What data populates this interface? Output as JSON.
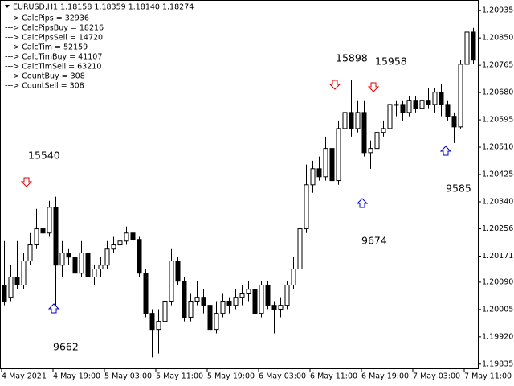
{
  "chart_data": {
    "type": "candlestick",
    "title": "EURUSD,H1  1.18158 1.18359 1.18140 1.18274",
    "info": [
      "---> CalcPips = 32936",
      "---> CalcPipsBuy = 18216",
      "---> CalcPipsSell = 14720",
      "---> CalcTim = 52159",
      "---> CalcTimBuy = 41107",
      "---> CalcTimSell = 63210",
      "---> CountBuy = 308",
      "---> CountSell = 308"
    ],
    "annotations": [
      "15540",
      "9662",
      "15898",
      "15958",
      "9674",
      "9585"
    ],
    "categories": [
      "4 May 2021",
      null,
      null,
      null,
      null,
      null,
      null,
      null,
      "4 May 19:00",
      null,
      null,
      null,
      null,
      null,
      null,
      null,
      "5 May 03:00",
      null,
      null,
      null,
      null,
      null,
      null,
      null,
      "5 May 11:00",
      null,
      null,
      null,
      null,
      null,
      null,
      null,
      "5 May 19:00",
      null,
      null,
      null,
      null,
      null,
      null,
      null,
      "6 May 03:00",
      null,
      null,
      null,
      null,
      null,
      null,
      null,
      "6 May 11:00",
      null,
      null,
      null,
      null,
      null,
      null,
      null,
      "6 May 19:00",
      null,
      null,
      null,
      null,
      null,
      null,
      null,
      "7 May 03:00",
      null,
      null,
      null,
      null,
      null,
      null,
      null,
      "7 May 11:00",
      null
    ],
    "open": [
      1.20081,
      1.20043,
      1.20106,
      1.20081,
      1.20156,
      1.20206,
      1.20256,
      1.20243,
      1.20323,
      1.20143,
      1.20181,
      1.20168,
      1.20118,
      1.20181,
      1.20106,
      1.20131,
      1.20143,
      1.20193,
      1.20206,
      1.20218,
      1.20243,
      1.20223,
      1.20118,
      1.19993,
      1.19943,
      1.19968,
      1.20031,
      1.20156,
      1.20093,
      1.19981,
      1.20031,
      1.20043,
      1.20018,
      1.19943,
      1.19993,
      1.20031,
      1.20018,
      1.20043,
      1.20056,
      1.20068,
      1.19993,
      1.20081,
      1.20018,
      1.20006,
      1.20018,
      1.20081,
      1.20131,
      1.20256,
      1.20393,
      1.20443,
      1.20418,
      1.20506,
      1.20406,
      1.20568,
      1.20618,
      1.20568,
      1.20618,
      1.20493,
      1.20506,
      1.20556,
      1.20568,
      1.20643,
      1.20643,
      1.20618,
      1.20656,
      1.20631,
      1.20656,
      1.20643,
      1.20681,
      1.20643,
      1.20606,
      1.20573,
      1.20768,
      1.20868
    ],
    "high": [
      1.20218,
      1.20143,
      1.20218,
      1.20181,
      1.20243,
      1.20318,
      1.20306,
      1.20343,
      1.20356,
      1.20218,
      1.20193,
      1.20218,
      1.20218,
      1.20193,
      1.20143,
      1.20168,
      1.20218,
      1.20231,
      1.20243,
      1.20263,
      1.20268,
      1.20231,
      1.20131,
      1.20006,
      1.20006,
      1.20043,
      1.20193,
      1.20168,
      1.20106,
      1.20056,
      1.20093,
      1.20068,
      1.20031,
      1.20031,
      1.20056,
      1.20043,
      1.20068,
      1.20081,
      1.20093,
      1.20081,
      1.20093,
      1.20093,
      1.20031,
      1.20043,
      1.20093,
      1.20168,
      1.20268,
      1.20456,
      1.20468,
      1.20481,
      1.20543,
      1.20531,
      1.20593,
      1.20643,
      1.20718,
      1.20656,
      1.20656,
      1.20531,
      1.20568,
      1.20593,
      1.20656,
      1.20656,
      1.20656,
      1.20668,
      1.20668,
      1.20681,
      1.20693,
      1.20693,
      1.20706,
      1.20656,
      1.20618,
      1.20781,
      1.20906,
      1.20881
    ],
    "low": [
      1.20018,
      1.20031,
      1.20068,
      1.20068,
      1.20143,
      1.20193,
      1.20168,
      1.20231,
      1.20006,
      1.20106,
      1.20143,
      1.20106,
      1.20106,
      1.20093,
      1.20081,
      1.20106,
      1.20131,
      1.20181,
      1.20193,
      1.20206,
      1.20213,
      1.20106,
      1.19981,
      1.19856,
      1.19868,
      1.19918,
      1.20018,
      1.20081,
      1.19968,
      1.19968,
      1.20018,
      1.19993,
      1.19918,
      1.19931,
      1.19981,
      1.19993,
      1.20006,
      1.20018,
      1.20031,
      1.19981,
      1.19981,
      1.20006,
      1.19931,
      1.19981,
      1.20006,
      1.20068,
      1.20118,
      1.20243,
      1.20368,
      1.20406,
      1.20406,
      1.20393,
      1.20393,
      1.20556,
      1.20543,
      1.20556,
      1.20481,
      1.20443,
      1.20481,
      1.20543,
      1.20556,
      1.20606,
      1.20593,
      1.20606,
      1.20618,
      1.20618,
      1.20631,
      1.20618,
      1.20606,
      1.20593,
      1.20523,
      1.20568,
      1.20743,
      1.20768
    ],
    "close": [
      1.20031,
      1.20106,
      1.20081,
      1.20156,
      1.20206,
      1.20256,
      1.20243,
      1.20323,
      1.20143,
      1.20181,
      1.20168,
      1.20118,
      1.20181,
      1.20106,
      1.20131,
      1.20143,
      1.20193,
      1.20206,
      1.20218,
      1.20243,
      1.20223,
      1.20118,
      1.19993,
      1.19943,
      1.19968,
      1.20031,
      1.20156,
      1.20093,
      1.19981,
      1.20031,
      1.20043,
      1.20018,
      1.19943,
      1.19993,
      1.20031,
      1.20018,
      1.20043,
      1.20056,
      1.20068,
      1.19993,
      1.20081,
      1.20018,
      1.20006,
      1.20018,
      1.20081,
      1.20131,
      1.20256,
      1.20393,
      1.20443,
      1.20418,
      1.20506,
      1.20406,
      1.20568,
      1.20618,
      1.20568,
      1.20618,
      1.20493,
      1.20506,
      1.20556,
      1.20568,
      1.20643,
      1.20643,
      1.20618,
      1.20656,
      1.20631,
      1.20656,
      1.20643,
      1.20681,
      1.20643,
      1.20606,
      1.20573,
      1.20768,
      1.20868,
      1.20781
    ],
    "up_color": "#ffffff",
    "down_color": "#000000",
    "ylim": [
      1.19822,
      1.20968
    ],
    "yticks": [
      1.20935,
      {
        "value": 1.2085,
        "label": "1.20850"
      },
      1.20765,
      {
        "value": 1.2068,
        "label": "1.20680"
      },
      1.20595,
      {
        "value": 1.2051,
        "label": "1.20510"
      },
      1.20425,
      {
        "value": 1.2034,
        "label": "1.20340"
      },
      1.20256,
      1.20171,
      {
        "value": 1.2009,
        "label": "1.20090"
      },
      1.20005,
      {
        "value": 1.1992,
        "label": "1.19920"
      },
      1.19835
    ]
  }
}
